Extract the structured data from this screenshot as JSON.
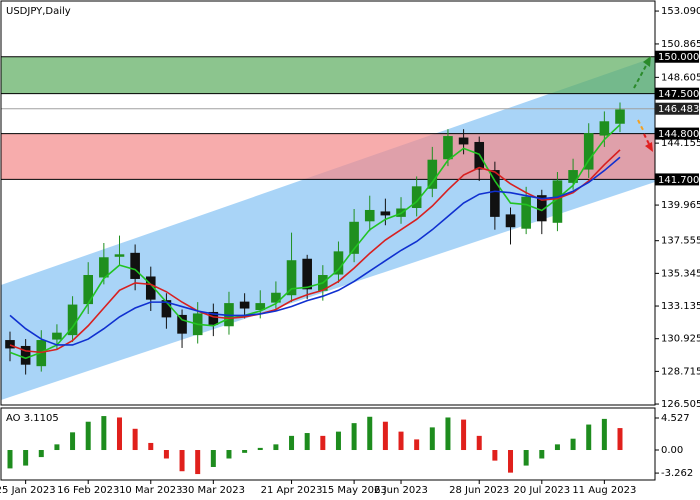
{
  "chart_data": [
    {
      "type": "candlestick",
      "title": "USDJPY,Daily",
      "categories": [
        null,
        "25 Jan 2023",
        null,
        null,
        null,
        "16 Feb 2023",
        null,
        null,
        null,
        "10 Mar 2023",
        null,
        null,
        null,
        "30 Mar 2023",
        null,
        null,
        null,
        null,
        "21 Apr 2023",
        null,
        null,
        null,
        "15 May 2023",
        null,
        null,
        "6 Jun 2023",
        null,
        null,
        null,
        null,
        "28 Jun 2023",
        null,
        null,
        null,
        "20 Jul 2023",
        null,
        null,
        null,
        "11 Aug 2023",
        null
      ],
      "open": [
        130.8,
        130.4,
        129.1,
        130.9,
        131.2,
        133.3,
        135.1,
        136.5,
        136.7,
        135.1,
        133.5,
        132.5,
        131.2,
        132.7,
        131.8,
        133.4,
        132.9,
        133.4,
        133.9,
        136.3,
        134.2,
        135.3,
        136.7,
        138.9,
        139.5,
        139.2,
        139.8,
        141.1,
        143.1,
        144.5,
        144.2,
        142.3,
        139.3,
        138.4,
        140.6,
        138.8,
        141.5,
        142.4,
        144.7,
        145.5
      ],
      "high": [
        131.4,
        130.9,
        131.5,
        131.9,
        133.8,
        136.1,
        137.4,
        137.9,
        137.3,
        135.8,
        134.0,
        132.9,
        133.4,
        133.3,
        134.1,
        134.0,
        134.2,
        134.8,
        138.1,
        136.6,
        135.9,
        137.5,
        139.7,
        140.6,
        140.4,
        140.5,
        141.9,
        143.9,
        145.1,
        145.1,
        144.6,
        142.9,
        139.8,
        141.2,
        141.0,
        142.2,
        143.1,
        145.5,
        146.3,
        146.9
      ],
      "low": [
        129.4,
        128.5,
        128.7,
        130.2,
        130.7,
        132.6,
        134.6,
        135.9,
        134.2,
        132.8,
        131.6,
        130.3,
        130.6,
        131.1,
        131.2,
        132.3,
        132.3,
        132.8,
        133.4,
        133.6,
        133.5,
        134.7,
        136.1,
        138.2,
        138.6,
        138.7,
        139.2,
        140.5,
        142.6,
        143.4,
        141.6,
        138.3,
        137.3,
        138.0,
        138.0,
        138.2,
        141.0,
        141.8,
        143.9,
        144.9
      ],
      "close": [
        130.3,
        129.2,
        130.8,
        131.3,
        133.2,
        135.2,
        136.4,
        136.6,
        135.0,
        133.6,
        132.4,
        131.3,
        132.6,
        131.9,
        133.3,
        133.0,
        133.3,
        134.0,
        136.2,
        134.3,
        135.2,
        136.8,
        138.8,
        139.6,
        139.3,
        139.7,
        141.2,
        143.0,
        144.6,
        144.1,
        142.4,
        139.2,
        138.5,
        140.5,
        138.9,
        141.6,
        142.3,
        144.8,
        145.6,
        146.4
      ],
      "up_color": "#1f8f1f",
      "down_color": "#111111",
      "ma_lines": [
        {
          "color": "#22c322",
          "values": [
            130.0,
            129.6,
            130.0,
            130.5,
            131.7,
            133.3,
            135.0,
            135.9,
            135.6,
            134.6,
            133.4,
            132.2,
            131.9,
            131.8,
            132.3,
            132.5,
            132.8,
            133.3,
            134.3,
            134.4,
            134.7,
            135.6,
            137.0,
            138.3,
            139.0,
            139.4,
            140.2,
            141.5,
            143.0,
            143.8,
            143.4,
            141.6,
            140.1,
            140.0,
            139.6,
            140.4,
            141.3,
            143.0,
            144.4,
            145.4
          ]
        },
        {
          "color": "#d82020",
          "values": [
            130.5,
            130.1,
            130.0,
            130.2,
            130.8,
            131.8,
            133.0,
            134.2,
            134.7,
            134.6,
            134.1,
            133.4,
            132.8,
            132.4,
            132.3,
            132.4,
            132.6,
            132.9,
            133.5,
            133.9,
            134.2,
            134.8,
            135.7,
            136.7,
            137.6,
            138.3,
            139.0,
            139.9,
            141.0,
            142.0,
            142.5,
            142.2,
            141.4,
            140.8,
            140.3,
            140.4,
            140.8,
            141.6,
            142.7,
            143.7
          ]
        },
        {
          "color": "#1030d0",
          "values": [
            132.5,
            131.6,
            130.9,
            130.5,
            130.5,
            130.9,
            131.6,
            132.4,
            133.0,
            133.4,
            133.4,
            133.1,
            132.8,
            132.6,
            132.5,
            132.5,
            132.6,
            132.8,
            133.1,
            133.5,
            133.8,
            134.2,
            134.8,
            135.5,
            136.2,
            136.9,
            137.5,
            138.3,
            139.2,
            140.1,
            140.7,
            140.9,
            140.8,
            140.6,
            140.4,
            140.5,
            140.9,
            141.5,
            142.3,
            143.2
          ]
        }
      ],
      "zones": [
        {
          "from": 147.5,
          "to": 150.0,
          "color": "#5fae62"
        },
        {
          "from": 141.7,
          "to": 144.8,
          "color": "#f48c8c"
        }
      ],
      "levels": [
        {
          "value": 150,
          "label": "150.000"
        },
        {
          "value": 147.5,
          "label": "147.500"
        },
        {
          "value": 144.8,
          "label": "144.800"
        },
        {
          "value": 141.7,
          "label": "141.700"
        }
      ],
      "current_price": 146.483,
      "ylim": [
        126.44,
        153.77
      ],
      "yticks": [
        {
          "value": 153.09,
          "label": "153.090"
        },
        {
          "value": 150.865,
          "label": "150.865"
        },
        {
          "value": 148.605,
          "label": "148.605"
        },
        {
          "value": 144.155,
          "label": "144.155"
        },
        {
          "value": 139.965,
          "label": "139.965"
        },
        {
          "value": 137.555,
          "label": "137.555"
        },
        {
          "value": 135.345,
          "label": "135.345"
        },
        {
          "value": 133.135,
          "label": "133.135"
        },
        {
          "value": 130.925,
          "label": "130.925"
        },
        {
          "value": 128.715,
          "label": "128.715"
        },
        {
          "value": 126.505,
          "label": "126.505"
        }
      ]
    },
    {
      "type": "bar",
      "title": "AO 3.1105",
      "values": [
        -2.6,
        -2.2,
        -1.0,
        0.8,
        2.5,
        4.0,
        4.8,
        4.6,
        3.0,
        1.0,
        -1.2,
        -3.0,
        -3.4,
        -2.4,
        -1.2,
        -0.4,
        0.3,
        0.8,
        2.0,
        2.4,
        2.0,
        2.6,
        3.8,
        4.7,
        4.0,
        2.6,
        1.5,
        3.2,
        4.6,
        4.3,
        2.0,
        -1.5,
        -3.2,
        -2.2,
        -1.2,
        0.8,
        1.6,
        3.6,
        4.4,
        3.1
      ],
      "up_color": "#1e8c1e",
      "down_color": "#e0201c",
      "ylim": [
        -4.24,
        5.94
      ],
      "yticks": [
        4.527,
        {
          "value": 0,
          "label": "0.00"
        },
        -3.262
      ]
    }
  ]
}
